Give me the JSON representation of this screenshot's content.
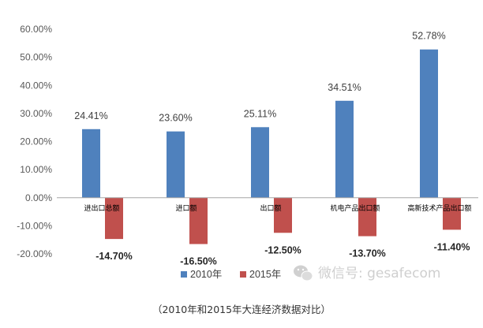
{
  "chart_data": {
    "type": "bar",
    "categories": [
      "进出口总额",
      "进口额",
      "出口额",
      "机电产品出口额",
      "高新技术产品出口额"
    ],
    "series": [
      {
        "name": "2010年",
        "color": "#4f81bd",
        "values": [
          24.41,
          23.6,
          25.11,
          34.51,
          52.78
        ],
        "labels": [
          "24.41%",
          "23.60%",
          "25.11%",
          "34.51%",
          "52.78%"
        ]
      },
      {
        "name": "2015年",
        "color": "#c0504d",
        "values": [
          -14.7,
          -16.5,
          -12.5,
          -13.7,
          -11.4
        ],
        "labels": [
          "-14.70%",
          "-16.50%",
          "-12.50%",
          "-13.70%",
          "-11.40%"
        ]
      }
    ],
    "y_ticks": [
      "60.00%",
      "50.00%",
      "40.00%",
      "30.00%",
      "20.00%",
      "10.00%",
      "0.00%",
      "-10.00%",
      "-20.00%"
    ],
    "ylim": [
      -20,
      60
    ],
    "grid": false,
    "legend": "bottom"
  },
  "watermark": {
    "icon": "wechat-icon",
    "text": "微信号: gesafecom"
  },
  "caption": "（2010年和2015年大连经济数据对比）"
}
